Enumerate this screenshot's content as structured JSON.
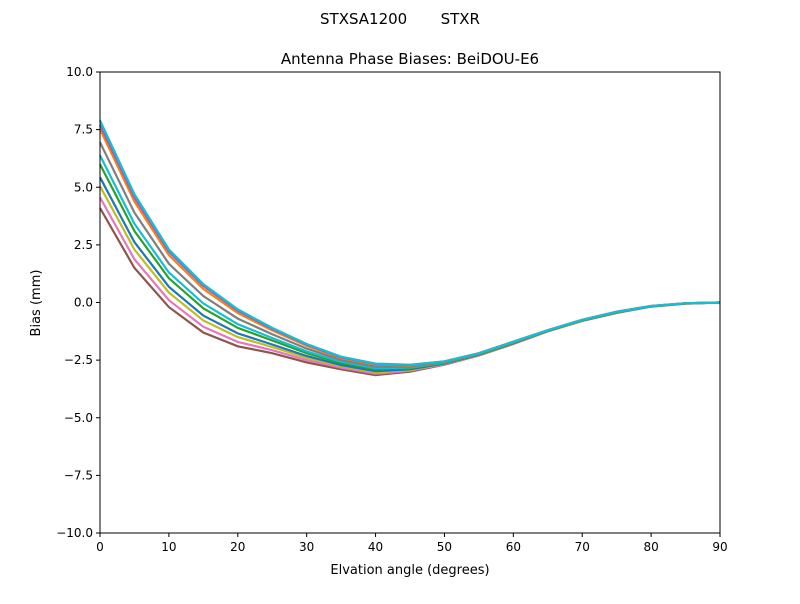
{
  "suptitle": "STXSA1200       STXR",
  "chart_data": {
    "type": "line",
    "title": "Antenna Phase Biases: BeiDOU-E6",
    "xlabel": "Elvation angle (degrees)",
    "ylabel": "Bias (mm)",
    "xlim": [
      0,
      90
    ],
    "ylim": [
      -10,
      10
    ],
    "xticks": [
      0,
      10,
      20,
      30,
      40,
      50,
      60,
      70,
      80,
      90
    ],
    "xtick_labels": [
      "0",
      "10",
      "20",
      "30",
      "40",
      "50",
      "60",
      "70",
      "80",
      "90"
    ],
    "yticks": [
      -10,
      -7.5,
      -5,
      -2.5,
      0,
      2.5,
      5,
      7.5,
      10
    ],
    "ytick_labels": [
      "−10.0",
      "−7.5",
      "−5.0",
      "−2.5",
      "0.0",
      "2.5",
      "5.0",
      "7.5",
      "10.0"
    ],
    "grid": false,
    "x": [
      0,
      5,
      10,
      15,
      20,
      25,
      30,
      35,
      40,
      45,
      50,
      55,
      60,
      65,
      70,
      75,
      80,
      85,
      90
    ],
    "series": [
      {
        "color": "#8c564b",
        "values": [
          4.1,
          1.5,
          -0.2,
          -1.3,
          -1.9,
          -2.2,
          -2.6,
          -2.9,
          -3.15,
          -3.0,
          -2.7,
          -2.3,
          -1.8,
          -1.25,
          -0.8,
          -0.45,
          -0.18,
          -0.05,
          0
        ]
      },
      {
        "color": "#e377c2",
        "values": [
          4.56,
          1.88,
          0.1,
          -1.05,
          -1.71,
          -2.07,
          -2.5,
          -2.83,
          -3.09,
          -2.96,
          -2.68,
          -2.29,
          -1.79,
          -1.24,
          -0.79,
          -0.44,
          -0.18,
          -0.05,
          0
        ]
      },
      {
        "color": "#bcbd22",
        "values": [
          5.05,
          2.3,
          0.43,
          -0.78,
          -1.5,
          -1.93,
          -2.4,
          -2.76,
          -3.03,
          -2.93,
          -2.66,
          -2.28,
          -1.78,
          -1.24,
          -0.79,
          -0.44,
          -0.17,
          -0.05,
          0
        ]
      },
      {
        "color": "#1f77b4",
        "values": [
          5.43,
          2.62,
          0.68,
          -0.57,
          -1.34,
          -1.82,
          -2.32,
          -2.71,
          -2.98,
          -2.9,
          -2.65,
          -2.27,
          -1.77,
          -1.23,
          -0.78,
          -0.43,
          -0.17,
          -0.04,
          0
        ]
      },
      {
        "color": "#2ca02c",
        "values": [
          6.0,
          3.1,
          1.05,
          -0.25,
          -1.1,
          -1.65,
          -2.2,
          -2.63,
          -2.9,
          -2.85,
          -2.63,
          -2.25,
          -1.75,
          -1.23,
          -0.78,
          -0.43,
          -0.17,
          -0.04,
          0
        ]
      },
      {
        "color": "#17becf",
        "values": [
          6.38,
          3.42,
          1.3,
          -0.04,
          -0.94,
          -1.54,
          -2.12,
          -2.57,
          -2.85,
          -2.82,
          -2.61,
          -2.24,
          -1.74,
          -1.22,
          -0.77,
          -0.42,
          -0.16,
          -0.04,
          0
        ]
      },
      {
        "color": "#7f7f7f",
        "values": [
          6.95,
          3.9,
          1.68,
          0.28,
          -0.7,
          -1.38,
          -2.0,
          -2.49,
          -2.78,
          -2.78,
          -2.59,
          -2.23,
          -1.73,
          -1.21,
          -0.76,
          -0.41,
          -0.16,
          -0.04,
          0
        ]
      },
      {
        "color": "#ff7f0e",
        "values": [
          7.52,
          4.38,
          2.05,
          0.59,
          -0.46,
          -1.21,
          -1.88,
          -2.41,
          -2.7,
          -2.73,
          -2.57,
          -2.21,
          -1.71,
          -1.2,
          -0.75,
          -0.4,
          -0.15,
          -0.03,
          0
        ]
      },
      {
        "color": "#9467bd",
        "values": [
          7.7,
          4.55,
          2.2,
          0.72,
          -0.36,
          -1.15,
          -1.83,
          -2.38,
          -2.67,
          -2.71,
          -2.56,
          -2.2,
          -1.7,
          -1.2,
          -0.75,
          -0.4,
          -0.15,
          -0.03,
          0
        ]
      },
      {
        "color": "#17becf",
        "values": [
          7.9,
          4.7,
          2.3,
          0.8,
          -0.3,
          -1.1,
          -1.8,
          -2.35,
          -2.65,
          -2.7,
          -2.55,
          -2.2,
          -1.7,
          -1.2,
          -0.75,
          -0.4,
          -0.15,
          -0.03,
          0
        ]
      }
    ]
  }
}
